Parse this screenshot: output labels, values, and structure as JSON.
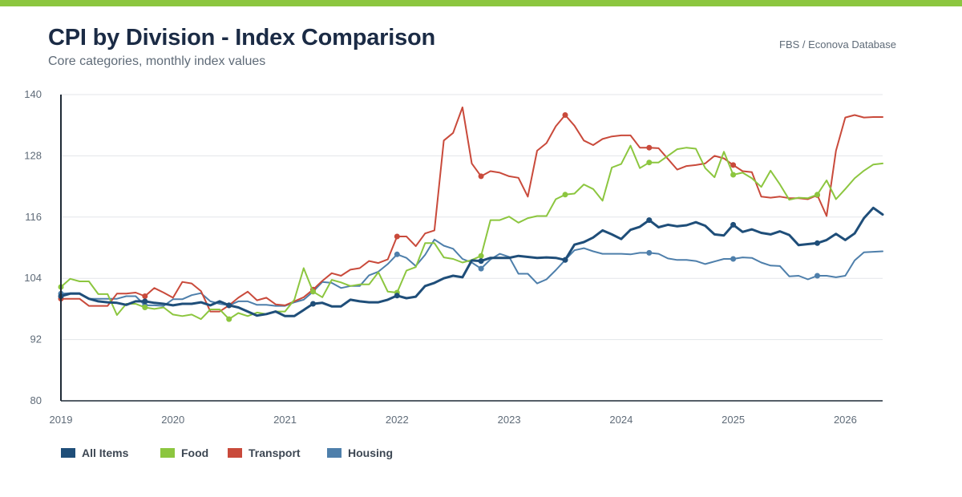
{
  "header": {
    "title": "CPI by Division - Index Comparison",
    "subtitle": "Core categories, monthly index values",
    "source": "FBS / Econova Database"
  },
  "colors": {
    "accent_bar": "#8cc63f",
    "grid": "#e3e6ea",
    "axis": "#1f2a36"
  },
  "chart_data": {
    "type": "line",
    "title": "CPI by Division - Index Comparison",
    "subtitle": "Core categories, monthly index values",
    "xlabel": "",
    "ylabel": "",
    "ylim": [
      80,
      140
    ],
    "yticks": [
      80,
      92,
      104,
      116,
      128,
      140
    ],
    "xlim": [
      "2019-01",
      "2026-05"
    ],
    "xticks": [
      {
        "label": "2019",
        "date": "2019-01"
      },
      {
        "label": "2020",
        "date": "2020-01"
      },
      {
        "label": "2021",
        "date": "2021-01"
      },
      {
        "label": "2022",
        "date": "2022-01"
      },
      {
        "label": "2023",
        "date": "2023-01"
      },
      {
        "label": "2024",
        "date": "2024-01"
      },
      {
        "label": "2025",
        "date": "2025-01"
      },
      {
        "label": "2026",
        "date": "2026-01"
      }
    ],
    "grid": true,
    "legend_position": "bottom-left",
    "x": [
      "2019-01",
      "2019-02",
      "2019-03",
      "2019-04",
      "2019-05",
      "2019-06",
      "2019-07",
      "2019-08",
      "2019-09",
      "2019-10",
      "2019-11",
      "2019-12",
      "2020-01",
      "2020-02",
      "2020-03",
      "2020-04",
      "2020-05",
      "2020-06",
      "2020-07",
      "2020-08",
      "2020-09",
      "2020-10",
      "2020-11",
      "2020-12",
      "2021-01",
      "2021-02",
      "2021-03",
      "2021-04",
      "2021-05",
      "2021-06",
      "2021-07",
      "2021-08",
      "2021-09",
      "2021-10",
      "2021-11",
      "2021-12",
      "2022-01",
      "2022-02",
      "2022-03",
      "2022-04",
      "2022-05",
      "2022-06",
      "2022-07",
      "2022-08",
      "2022-09",
      "2022-10",
      "2022-11",
      "2022-12",
      "2023-01",
      "2023-02",
      "2023-03",
      "2023-04",
      "2023-05",
      "2023-06",
      "2023-07",
      "2023-08",
      "2023-09",
      "2023-10",
      "2023-11",
      "2023-12",
      "2024-01",
      "2024-02",
      "2024-03",
      "2024-04",
      "2024-05",
      "2024-06",
      "2024-07",
      "2024-08",
      "2024-09",
      "2024-10",
      "2024-11",
      "2024-12",
      "2025-01",
      "2025-02",
      "2025-03",
      "2025-04",
      "2025-05",
      "2025-06",
      "2025-07",
      "2025-08",
      "2025-09",
      "2025-10",
      "2025-11",
      "2025-12",
      "2026-01",
      "2026-02",
      "2026-03",
      "2026-04",
      "2026-05"
    ],
    "series": [
      {
        "name": "All Items",
        "color": "#1f4e79",
        "width": 3,
        "markers_every": 9,
        "values": [
          100.5,
          101.0,
          101.0,
          100.0,
          99.5,
          99.3,
          99.2,
          98.8,
          99.5,
          99.5,
          99.2,
          99.0,
          98.7,
          99.0,
          99.0,
          99.3,
          98.7,
          99.5,
          98.7,
          98.3,
          97.5,
          96.7,
          97.0,
          97.5,
          96.6,
          96.6,
          97.8,
          99.0,
          99.2,
          98.5,
          98.5,
          99.8,
          99.5,
          99.3,
          99.3,
          99.8,
          100.6,
          100.1,
          100.4,
          102.5,
          103.1,
          104.0,
          104.5,
          104.2,
          107.5,
          107.4,
          108.0,
          108.0,
          108.0,
          108.4,
          108.2,
          108.0,
          108.1,
          108.0,
          107.6,
          110.6,
          111.1,
          112.0,
          113.4,
          112.6,
          111.7,
          113.5,
          114.1,
          115.4,
          114.0,
          114.5,
          114.2,
          114.4,
          115.0,
          114.3,
          112.6,
          112.4,
          114.5,
          113.1,
          113.6,
          112.9,
          112.6,
          113.2,
          112.5,
          110.5,
          110.7,
          110.9,
          111.5,
          112.7,
          111.5,
          112.8,
          115.8,
          117.8,
          116.5
        ]
      },
      {
        "name": "Food",
        "color": "#8cc63f",
        "width": 2,
        "markers_every": 9,
        "values": [
          102.3,
          103.9,
          103.4,
          103.4,
          100.9,
          100.9,
          96.8,
          99.0,
          99.0,
          98.3,
          98.0,
          98.3,
          96.9,
          96.6,
          96.9,
          96.0,
          97.9,
          97.9,
          96.0,
          97.2,
          96.6,
          97.3,
          97.0,
          97.5,
          97.5,
          99.8,
          106.0,
          101.4,
          100.3,
          103.7,
          103.2,
          102.5,
          102.8,
          102.8,
          105.2,
          101.4,
          101.2,
          105.5,
          106.2,
          110.9,
          110.9,
          108.1,
          107.8,
          107.1,
          107.6,
          108.4,
          115.4,
          115.4,
          116.1,
          114.9,
          115.8,
          116.2,
          116.2,
          119.5,
          120.4,
          120.6,
          122.4,
          121.5,
          119.2,
          125.7,
          126.4,
          130.0,
          125.6,
          126.7,
          126.7,
          128.0,
          129.3,
          129.6,
          129.4,
          125.6,
          123.8,
          128.8,
          124.3,
          124.7,
          123.6,
          121.9,
          125.1,
          122.4,
          119.4,
          119.8,
          119.7,
          120.4,
          123.2,
          119.5,
          121.5,
          123.6,
          125.1,
          126.3,
          126.5
        ]
      },
      {
        "name": "Transport",
        "color": "#c94a3b",
        "width": 2,
        "markers_every": 9,
        "values": [
          100.0,
          100.0,
          100.0,
          98.6,
          98.6,
          98.6,
          101.0,
          101.0,
          101.2,
          100.5,
          102.1,
          101.2,
          100.2,
          103.3,
          103.0,
          101.5,
          97.5,
          97.5,
          98.7,
          100.2,
          101.4,
          99.7,
          100.2,
          98.9,
          98.7,
          99.5,
          100.3,
          101.8,
          103.5,
          105.0,
          104.5,
          105.7,
          106.0,
          107.4,
          107.0,
          107.7,
          112.2,
          112.2,
          110.3,
          112.8,
          113.4,
          131.0,
          132.5,
          137.5,
          126.5,
          124.0,
          125.0,
          124.7,
          124.0,
          123.7,
          120.0,
          129.0,
          130.5,
          133.8,
          136.0,
          133.9,
          131.0,
          130.1,
          131.3,
          131.8,
          132.0,
          132.0,
          129.6,
          129.6,
          129.5,
          127.4,
          125.3,
          126.0,
          126.2,
          126.5,
          128.0,
          127.5,
          126.2,
          125.0,
          124.8,
          120.0,
          119.8,
          120.0,
          119.7,
          119.7,
          119.5,
          120.3,
          116.2,
          129.0,
          135.5,
          136.0,
          135.5,
          135.6,
          135.6
        ]
      },
      {
        "name": "Housing",
        "color": "#4e7fab",
        "width": 2,
        "markers_every": 9,
        "values": [
          101.0,
          101.1,
          101.1,
          100.0,
          100.0,
          100.0,
          100.0,
          100.5,
          100.5,
          98.7,
          98.7,
          98.6,
          99.9,
          99.9,
          100.7,
          101.1,
          99.5,
          99.0,
          98.7,
          99.5,
          99.5,
          98.8,
          98.8,
          98.6,
          98.6,
          99.3,
          99.8,
          101.4,
          103.3,
          103.1,
          102.1,
          102.5,
          102.5,
          104.6,
          105.3,
          106.8,
          108.7,
          108.0,
          106.4,
          108.6,
          111.6,
          110.4,
          109.8,
          107.8,
          107.1,
          105.9,
          107.7,
          108.8,
          108.2,
          104.9,
          104.9,
          103.0,
          103.8,
          105.6,
          107.6,
          109.5,
          109.9,
          109.3,
          108.8,
          108.8,
          108.8,
          108.7,
          109.0,
          109.0,
          108.8,
          107.9,
          107.6,
          107.6,
          107.4,
          106.8,
          107.3,
          107.8,
          107.8,
          108.1,
          108.0,
          107.1,
          106.5,
          106.4,
          104.4,
          104.5,
          103.8,
          104.5,
          104.5,
          104.2,
          104.5,
          107.5,
          109.1,
          109.2,
          109.3
        ]
      }
    ]
  },
  "legend": [
    {
      "label": "All Items",
      "color": "#1f4e79"
    },
    {
      "label": "Food",
      "color": "#8cc63f"
    },
    {
      "label": "Transport",
      "color": "#c94a3b"
    },
    {
      "label": "Housing",
      "color": "#4e7fab"
    }
  ]
}
